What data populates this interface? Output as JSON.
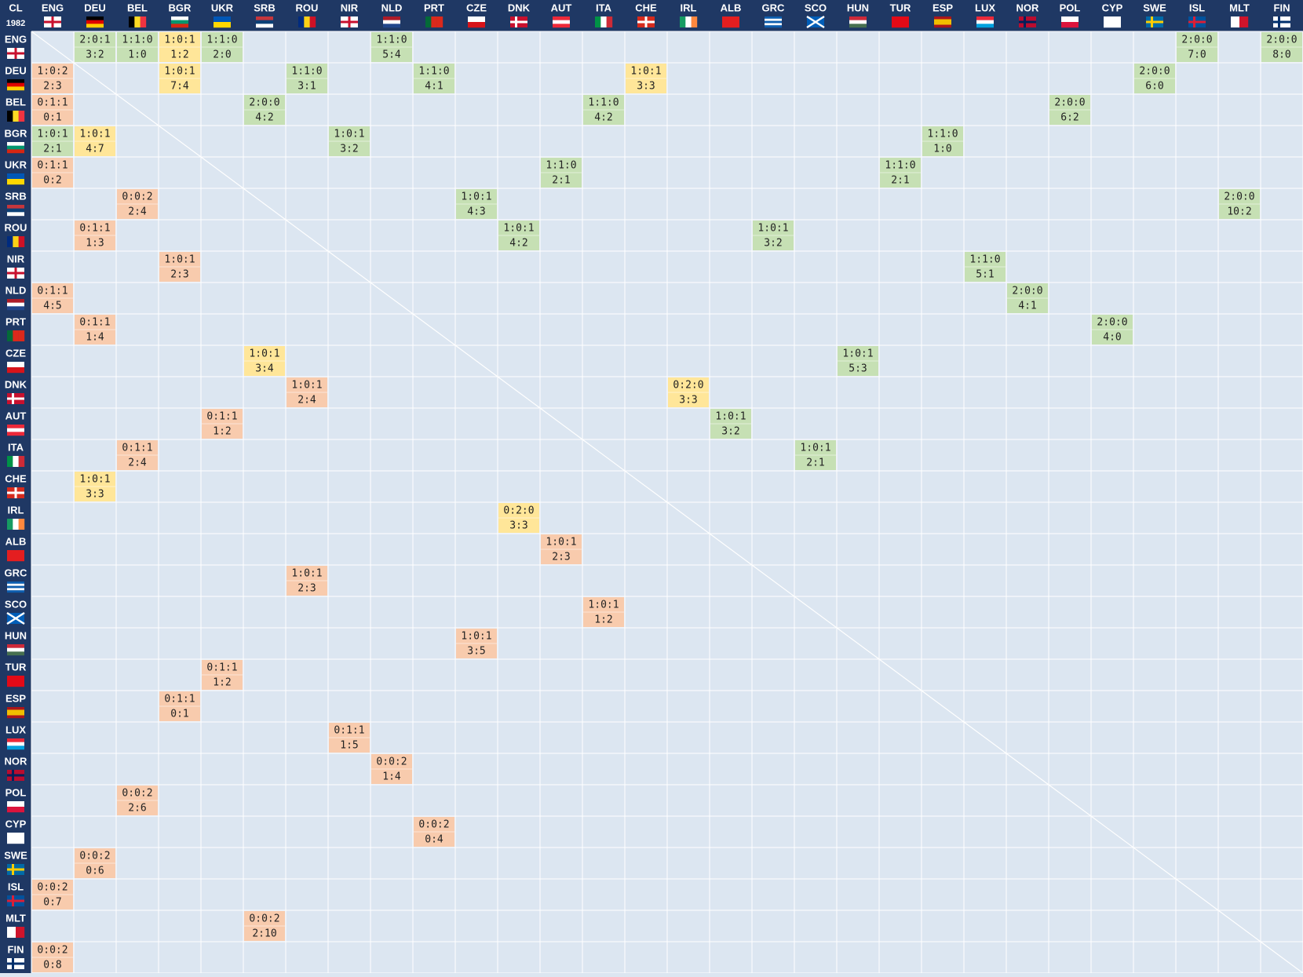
{
  "header": {
    "title": "CL",
    "year": "1982"
  },
  "columns": [
    "ENG",
    "DEU",
    "BEL",
    "BGR",
    "UKR",
    "SRB",
    "ROU",
    "NIR",
    "NLD",
    "PRT",
    "CZE",
    "DNK",
    "AUT",
    "ITA",
    "CHE",
    "IRL",
    "ALB",
    "GRC",
    "SCO",
    "HUN",
    "TUR",
    "ESP",
    "LUX",
    "NOR",
    "POL",
    "CYP",
    "SWE",
    "ISL",
    "MLT",
    "FIN"
  ],
  "rows": [
    {
      "team": "ENG",
      "cells": {
        "DEU": {
          "record": "2:0:1",
          "score": "3:2",
          "color": "#c6e0b4"
        },
        "BEL": {
          "record": "1:1:0",
          "score": "1:0",
          "color": "#c6e0b4"
        },
        "BGR": {
          "record": "1:0:1",
          "score": "1:2",
          "color": "#ffe699"
        },
        "UKR": {
          "record": "1:1:0",
          "score": "2:0",
          "color": "#c6e0b4"
        },
        "NLD": {
          "record": "1:1:0",
          "score": "5:4",
          "color": "#c6e0b4"
        },
        "ISL": {
          "record": "2:0:0",
          "score": "7:0",
          "color": "#c6e0b4"
        },
        "FIN": {
          "record": "2:0:0",
          "score": "8:0",
          "color": "#c6e0b4"
        }
      }
    },
    {
      "team": "DEU",
      "cells": {
        "ENG": {
          "record": "1:0:2",
          "score": "2:3",
          "color": "#f8cbad"
        },
        "BGR": {
          "record": "1:0:1",
          "score": "7:4",
          "color": "#ffe699"
        },
        "ROU": {
          "record": "1:1:0",
          "score": "3:1",
          "color": "#c6e0b4"
        },
        "PRT": {
          "record": "1:1:0",
          "score": "4:1",
          "color": "#c6e0b4"
        },
        "CHE": {
          "record": "1:0:1",
          "score": "3:3",
          "color": "#ffe699"
        },
        "SWE": {
          "record": "2:0:0",
          "score": "6:0",
          "color": "#c6e0b4"
        }
      }
    },
    {
      "team": "BEL",
      "cells": {
        "ENG": {
          "record": "0:1:1",
          "score": "0:1",
          "color": "#f8cbad"
        },
        "SRB": {
          "record": "2:0:0",
          "score": "4:2",
          "color": "#c6e0b4"
        },
        "ITA": {
          "record": "1:1:0",
          "score": "4:2",
          "color": "#c6e0b4"
        },
        "POL": {
          "record": "2:0:0",
          "score": "6:2",
          "color": "#c6e0b4"
        }
      }
    },
    {
      "team": "BGR",
      "cells": {
        "ENG": {
          "record": "1:0:1",
          "score": "2:1",
          "color": "#c6e0b4"
        },
        "DEU": {
          "record": "1:0:1",
          "score": "4:7",
          "color": "#ffe699"
        },
        "NIR": {
          "record": "1:0:1",
          "score": "3:2",
          "color": "#c6e0b4"
        },
        "ESP": {
          "record": "1:1:0",
          "score": "1:0",
          "color": "#c6e0b4"
        }
      }
    },
    {
      "team": "UKR",
      "cells": {
        "ENG": {
          "record": "0:1:1",
          "score": "0:2",
          "color": "#f8cbad"
        },
        "AUT": {
          "record": "1:1:0",
          "score": "2:1",
          "color": "#c6e0b4"
        },
        "TUR": {
          "record": "1:1:0",
          "score": "2:1",
          "color": "#c6e0b4"
        }
      }
    },
    {
      "team": "SRB",
      "cells": {
        "BEL": {
          "record": "0:0:2",
          "score": "2:4",
          "color": "#f8cbad"
        },
        "CZE": {
          "record": "1:0:1",
          "score": "4:3",
          "color": "#c6e0b4"
        },
        "MLT": {
          "record": "2:0:0",
          "score": "10:2",
          "color": "#c6e0b4"
        }
      }
    },
    {
      "team": "ROU",
      "cells": {
        "DEU": {
          "record": "0:1:1",
          "score": "1:3",
          "color": "#f8cbad"
        },
        "DNK": {
          "record": "1:0:1",
          "score": "4:2",
          "color": "#c6e0b4"
        },
        "GRC": {
          "record": "1:0:1",
          "score": "3:2",
          "color": "#c6e0b4"
        }
      }
    },
    {
      "team": "NIR",
      "cells": {
        "BGR": {
          "record": "1:0:1",
          "score": "2:3",
          "color": "#f8cbad"
        },
        "LUX": {
          "record": "1:1:0",
          "score": "5:1",
          "color": "#c6e0b4"
        }
      }
    },
    {
      "team": "NLD",
      "cells": {
        "ENG": {
          "record": "0:1:1",
          "score": "4:5",
          "color": "#f8cbad"
        },
        "NOR": {
          "record": "2:0:0",
          "score": "4:1",
          "color": "#c6e0b4"
        }
      }
    },
    {
      "team": "PRT",
      "cells": {
        "DEU": {
          "record": "0:1:1",
          "score": "1:4",
          "color": "#f8cbad"
        },
        "CYP": {
          "record": "2:0:0",
          "score": "4:0",
          "color": "#c6e0b4"
        }
      }
    },
    {
      "team": "CZE",
      "cells": {
        "SRB": {
          "record": "1:0:1",
          "score": "3:4",
          "color": "#ffe699"
        },
        "HUN": {
          "record": "1:0:1",
          "score": "5:3",
          "color": "#c6e0b4"
        }
      }
    },
    {
      "team": "DNK",
      "cells": {
        "ROU": {
          "record": "1:0:1",
          "score": "2:4",
          "color": "#f8cbad"
        },
        "IRL": {
          "record": "0:2:0",
          "score": "3:3",
          "color": "#ffe699"
        }
      }
    },
    {
      "team": "AUT",
      "cells": {
        "UKR": {
          "record": "0:1:1",
          "score": "1:2",
          "color": "#f8cbad"
        },
        "ALB": {
          "record": "1:0:1",
          "score": "3:2",
          "color": "#c6e0b4"
        }
      }
    },
    {
      "team": "ITA",
      "cells": {
        "BEL": {
          "record": "0:1:1",
          "score": "2:4",
          "color": "#f8cbad"
        },
        "SCO": {
          "record": "1:0:1",
          "score": "2:1",
          "color": "#c6e0b4"
        }
      }
    },
    {
      "team": "CHE",
      "cells": {
        "DEU": {
          "record": "1:0:1",
          "score": "3:3",
          "color": "#ffe699"
        }
      }
    },
    {
      "team": "IRL",
      "cells": {
        "DNK": {
          "record": "0:2:0",
          "score": "3:3",
          "color": "#ffe699"
        }
      }
    },
    {
      "team": "ALB",
      "cells": {
        "AUT": {
          "record": "1:0:1",
          "score": "2:3",
          "color": "#f8cbad"
        }
      }
    },
    {
      "team": "GRC",
      "cells": {
        "ROU": {
          "record": "1:0:1",
          "score": "2:3",
          "color": "#f8cbad"
        }
      }
    },
    {
      "team": "SCO",
      "cells": {
        "ITA": {
          "record": "1:0:1",
          "score": "1:2",
          "color": "#f8cbad"
        }
      }
    },
    {
      "team": "HUN",
      "cells": {
        "CZE": {
          "record": "1:0:1",
          "score": "3:5",
          "color": "#f8cbad"
        }
      }
    },
    {
      "team": "TUR",
      "cells": {
        "UKR": {
          "record": "0:1:1",
          "score": "1:2",
          "color": "#f8cbad"
        }
      }
    },
    {
      "team": "ESP",
      "cells": {
        "BGR": {
          "record": "0:1:1",
          "score": "0:1",
          "color": "#f8cbad"
        }
      }
    },
    {
      "team": "LUX",
      "cells": {
        "NIR": {
          "record": "0:1:1",
          "score": "1:5",
          "color": "#f8cbad"
        }
      }
    },
    {
      "team": "NOR",
      "cells": {
        "NLD": {
          "record": "0:0:2",
          "score": "1:4",
          "color": "#f8cbad"
        }
      }
    },
    {
      "team": "POL",
      "cells": {
        "BEL": {
          "record": "0:0:2",
          "score": "2:6",
          "color": "#f8cbad"
        }
      }
    },
    {
      "team": "CYP",
      "cells": {
        "PRT": {
          "record": "0:0:2",
          "score": "0:4",
          "color": "#f8cbad"
        }
      }
    },
    {
      "team": "SWE",
      "cells": {
        "DEU": {
          "record": "0:0:2",
          "score": "0:6",
          "color": "#f8cbad"
        }
      }
    },
    {
      "team": "ISL",
      "cells": {
        "ENG": {
          "record": "0:0:2",
          "score": "0:7",
          "color": "#f8cbad"
        }
      }
    },
    {
      "team": "MLT",
      "cells": {
        "SRB": {
          "record": "0:0:2",
          "score": "2:10",
          "color": "#f8cbad"
        }
      }
    },
    {
      "team": "FIN",
      "cells": {
        "ENG": {
          "record": "0:0:2",
          "score": "0:8",
          "color": "#f8cbad"
        }
      }
    }
  ]
}
